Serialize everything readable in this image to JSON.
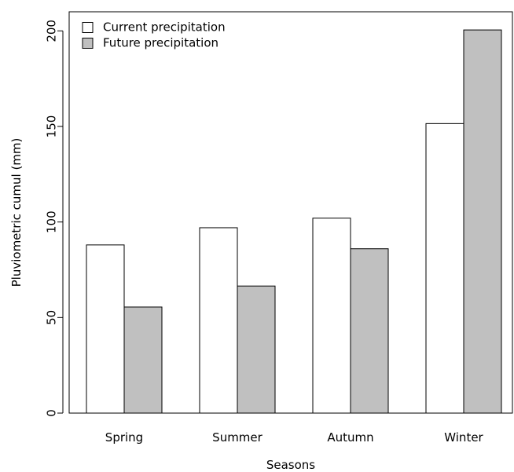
{
  "chart_data": {
    "type": "bar",
    "categories": [
      "Spring",
      "Summer",
      "Autumn",
      "Winter"
    ],
    "series": [
      {
        "name": "Current precipitation",
        "values": [
          88,
          97,
          102,
          151.5
        ],
        "color": "#ffffff"
      },
      {
        "name": "Future precipitation",
        "values": [
          55.5,
          66.5,
          86,
          200.5
        ],
        "color": "#c0c0c0"
      }
    ],
    "xlabel": "Seasons",
    "ylabel": "Pluviometric cumul (mm)",
    "ylim": [
      0,
      210
    ],
    "yticks": [
      0,
      50,
      100,
      150,
      200
    ],
    "grid": false,
    "legend_position": "top-left"
  }
}
